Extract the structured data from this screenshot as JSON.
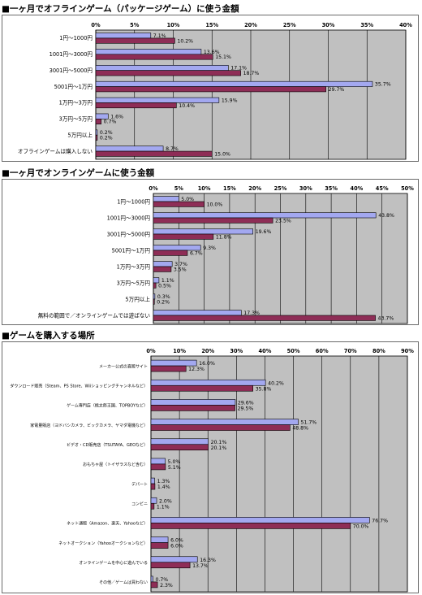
{
  "chart_data": [
    {
      "type": "bar",
      "orientation": "horizontal",
      "title": "■一ヶ月でオフラインゲーム（パッケージゲーム）に使う金額",
      "xlim": [
        0,
        40
      ],
      "ticks": [
        "0%",
        "5%",
        "10%",
        "15%",
        "20%",
        "25%",
        "30%",
        "35%",
        "40%"
      ],
      "categories": [
        "1円～1000円",
        "1001円～3000円",
        "3001円～5000円",
        "5001円～1万円",
        "1万円～3万円",
        "3万円～5万円",
        "5万円以上",
        "オフラインゲームは購入しない"
      ],
      "series": [
        {
          "values": [
            7.1,
            13.6,
            17.1,
            35.7,
            15.9,
            1.6,
            0.2,
            8.7
          ],
          "labels": [
            "7.1%",
            "13.6%",
            "17.1%",
            "35.7%",
            "15.9%",
            "1.6%",
            "0.2%",
            "8.7%"
          ]
        },
        {
          "values": [
            10.2,
            15.1,
            18.7,
            29.7,
            10.4,
            0.7,
            0.2,
            15.0
          ],
          "labels": [
            "10.2%",
            "15.1%",
            "18.7%",
            "29.7%",
            "10.4%",
            "0.7%",
            "0.2%",
            "15.0%"
          ]
        }
      ],
      "grid": true
    },
    {
      "type": "bar",
      "orientation": "horizontal",
      "title": "■一ヶ月でオンラインゲームに使う金額",
      "xlim": [
        0,
        50
      ],
      "ticks": [
        "0%",
        "5%",
        "10%",
        "15%",
        "20%",
        "25%",
        "30%",
        "35%",
        "40%",
        "45%",
        "50%"
      ],
      "categories": [
        "1円～1000円",
        "1001円～3000円",
        "3001円～5000円",
        "5001円～1万円",
        "1万円～3万円",
        "3万円～5万円",
        "5万円以上",
        "無料の範囲で／オンラインゲームでは遊ばない"
      ],
      "series": [
        {
          "values": [
            5.0,
            43.8,
            19.6,
            9.3,
            3.7,
            1.1,
            0.3,
            17.3
          ],
          "labels": [
            "5.0%",
            "43.8%",
            "19.6%",
            "9.3%",
            "3.7%",
            "1.1%",
            "0.3%",
            "17.3%"
          ]
        },
        {
          "values": [
            10.0,
            23.5,
            11.8,
            6.7,
            3.5,
            0.5,
            0.2,
            43.7
          ],
          "labels": [
            "10.0%",
            "23.5%",
            "11.8%",
            "6.7%",
            "3.5%",
            "0.5%",
            "0.2%",
            "43.7%"
          ]
        }
      ],
      "grid": true
    },
    {
      "type": "bar",
      "orientation": "horizontal",
      "title": "■ゲームを購入する場所",
      "xlim": [
        0,
        90
      ],
      "ticks": [
        "0%",
        "10%",
        "20%",
        "30%",
        "40%",
        "50%",
        "60%",
        "70%",
        "80%",
        "90%"
      ],
      "categories": [
        "メーカー公式の直販サイト",
        "ダウンロード販売（Steam、PS Store、Wiiショッピングチャンネルなど）",
        "ゲーム専門店（桃太郎王国、TOPBOYなど）",
        "家電量販店（ヨドバシカメラ、ビックカメラ、ヤマダ電機など）",
        "ビデオ・CD販売店（TSUTAYA、GEOなど）",
        "おもちゃ屋（トイザラスなど含む）",
        "デパート",
        "コンビニ",
        "ネット通販（Amazon、楽天、Yahooなど）",
        "ネットオークション（Yahooオークションなど）",
        "オンラインゲームを中心に遊んでいる",
        "その他／ゲームは買わない"
      ],
      "series": [
        {
          "values": [
            16.0,
            40.2,
            29.6,
            51.7,
            20.1,
            5.0,
            1.3,
            2.0,
            76.7,
            6.0,
            16.3,
            0.7
          ],
          "labels": [
            "16.0%",
            "40.2%",
            "29.6%",
            "51.7%",
            "20.1%",
            "5.0%",
            "1.3%",
            "2.0%",
            "76.7%",
            "6.0%",
            "16.3%",
            "0.7%"
          ]
        },
        {
          "values": [
            12.3,
            35.8,
            29.5,
            48.8,
            20.1,
            5.1,
            1.4,
            1.1,
            70.0,
            6.0,
            13.7,
            2.3
          ],
          "labels": [
            "12.3%",
            "35.8%",
            "29.5%",
            "48.8%",
            "20.1%",
            "5.1%",
            "1.4%",
            "1.1%",
            "70.0%",
            "6.0%",
            "13.7%",
            "2.3%"
          ]
        }
      ],
      "grid": true
    }
  ],
  "colors": {
    "series1": "#a3a8f0",
    "series2": "#8e2d56",
    "plot_background": "#c0c0c0",
    "grid": "#000000"
  }
}
